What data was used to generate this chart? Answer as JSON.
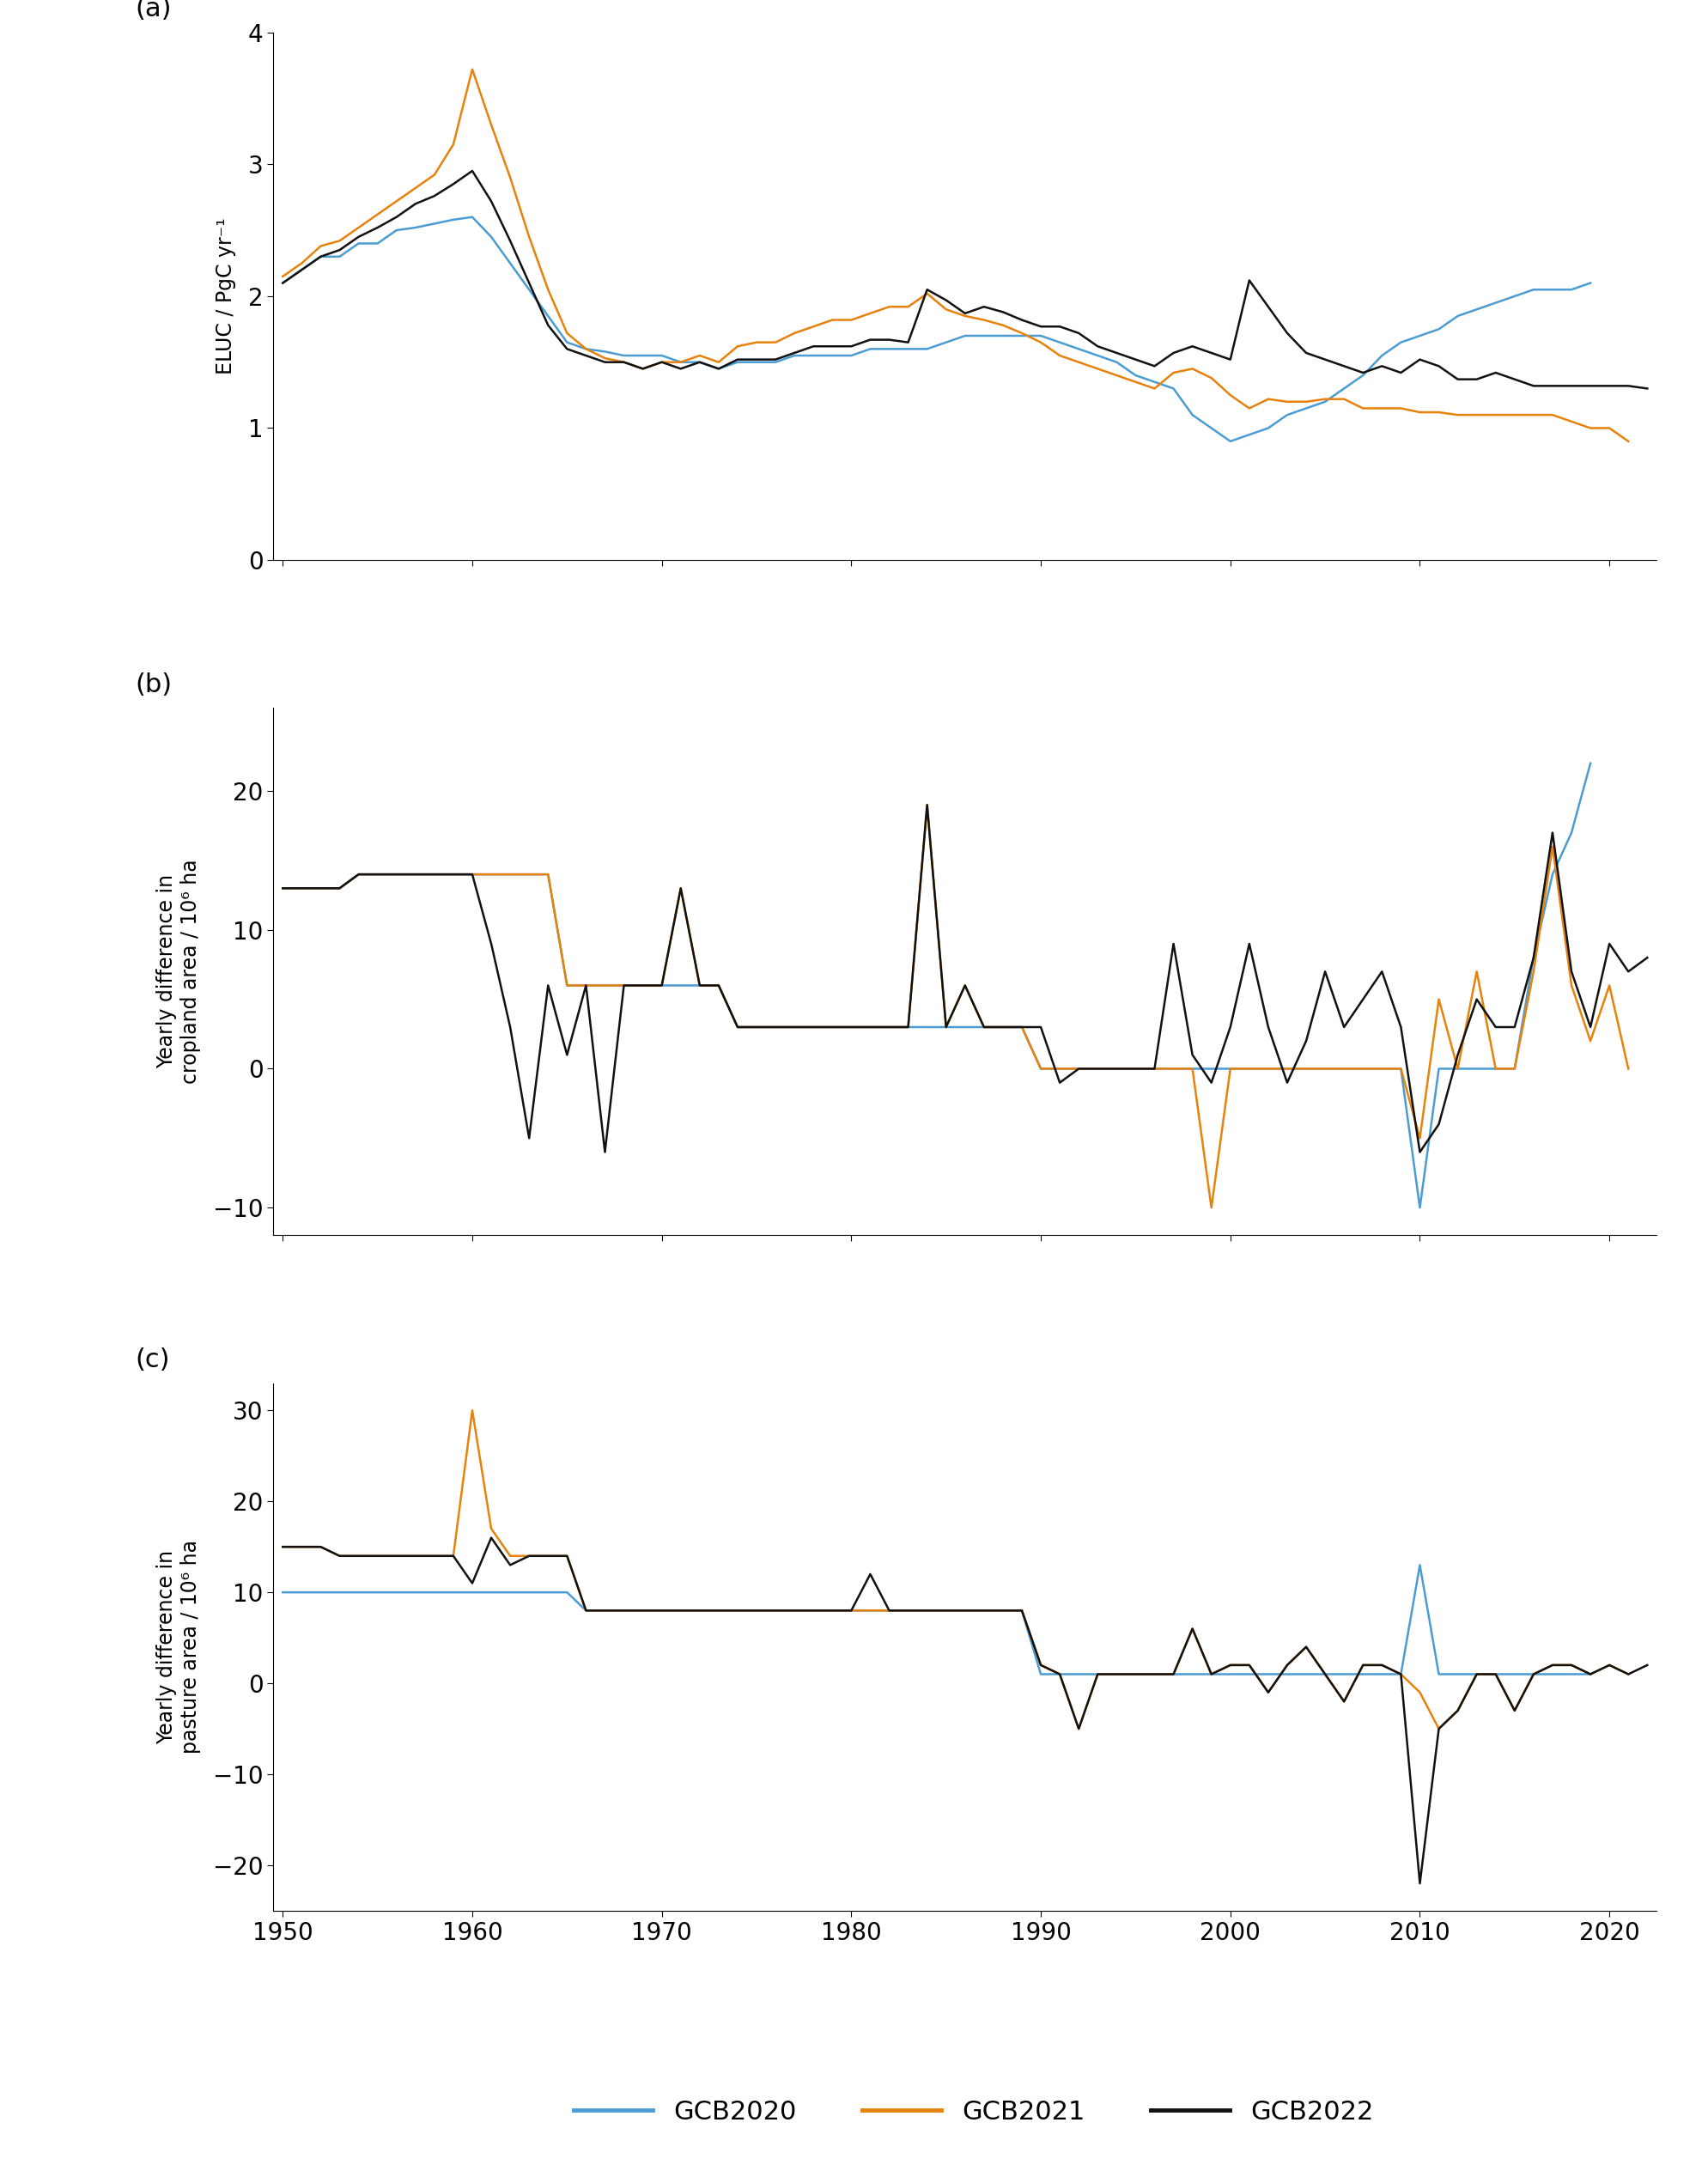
{
  "colors": {
    "GCB2020": "#4B9CD3",
    "GCB2021": "#E8820C",
    "GCB2022": "#111111"
  },
  "legend_labels": [
    "GCB2020",
    "GCB2021",
    "GCB2022"
  ],
  "panel_labels": [
    "(a)",
    "(b)",
    "(c)"
  ],
  "ylabels": [
    "ELUC / PgC yr⁻¹",
    "Yearly difference in\ncropland area / 10⁶ ha",
    "Yearly difference in\npasture area / 10⁶ ha"
  ],
  "panel_a": {
    "GCB2020": {
      "years": [
        1950,
        1951,
        1952,
        1953,
        1954,
        1955,
        1956,
        1957,
        1958,
        1959,
        1960,
        1961,
        1962,
        1963,
        1964,
        1965,
        1966,
        1967,
        1968,
        1969,
        1970,
        1971,
        1972,
        1973,
        1974,
        1975,
        1976,
        1977,
        1978,
        1979,
        1980,
        1981,
        1982,
        1983,
        1984,
        1985,
        1986,
        1987,
        1988,
        1989,
        1990,
        1991,
        1992,
        1993,
        1994,
        1995,
        1996,
        1997,
        1998,
        1999,
        2000,
        2001,
        2002,
        2003,
        2004,
        2005,
        2006,
        2007,
        2008,
        2009,
        2010,
        2011,
        2012,
        2013,
        2014,
        2015,
        2016,
        2017,
        2018,
        2019
      ],
      "values": [
        2.1,
        2.2,
        2.3,
        2.3,
        2.4,
        2.4,
        2.5,
        2.52,
        2.55,
        2.58,
        2.6,
        2.45,
        2.25,
        2.05,
        1.85,
        1.65,
        1.6,
        1.58,
        1.55,
        1.55,
        1.55,
        1.5,
        1.5,
        1.45,
        1.5,
        1.5,
        1.5,
        1.55,
        1.55,
        1.55,
        1.55,
        1.6,
        1.6,
        1.6,
        1.6,
        1.65,
        1.7,
        1.7,
        1.7,
        1.7,
        1.7,
        1.65,
        1.6,
        1.55,
        1.5,
        1.4,
        1.35,
        1.3,
        1.1,
        1.0,
        0.9,
        0.95,
        1.0,
        1.1,
        1.15,
        1.2,
        1.3,
        1.4,
        1.55,
        1.65,
        1.7,
        1.75,
        1.85,
        1.9,
        1.95,
        2.0,
        2.05,
        2.05,
        2.05,
        2.1
      ]
    },
    "GCB2021": {
      "years": [
        1950,
        1951,
        1952,
        1953,
        1954,
        1955,
        1956,
        1957,
        1958,
        1959,
        1960,
        1961,
        1962,
        1963,
        1964,
        1965,
        1966,
        1967,
        1968,
        1969,
        1970,
        1971,
        1972,
        1973,
        1974,
        1975,
        1976,
        1977,
        1978,
        1979,
        1980,
        1981,
        1982,
        1983,
        1984,
        1985,
        1986,
        1987,
        1988,
        1989,
        1990,
        1991,
        1992,
        1993,
        1994,
        1995,
        1996,
        1997,
        1998,
        1999,
        2000,
        2001,
        2002,
        2003,
        2004,
        2005,
        2006,
        2007,
        2008,
        2009,
        2010,
        2011,
        2012,
        2013,
        2014,
        2015,
        2016,
        2017,
        2018,
        2019,
        2020,
        2021
      ],
      "values": [
        2.15,
        2.25,
        2.38,
        2.42,
        2.52,
        2.62,
        2.72,
        2.82,
        2.92,
        3.15,
        3.72,
        3.3,
        2.9,
        2.45,
        2.05,
        1.72,
        1.6,
        1.53,
        1.5,
        1.45,
        1.5,
        1.5,
        1.55,
        1.5,
        1.62,
        1.65,
        1.65,
        1.72,
        1.77,
        1.82,
        1.82,
        1.87,
        1.92,
        1.92,
        2.02,
        1.9,
        1.85,
        1.82,
        1.78,
        1.72,
        1.65,
        1.55,
        1.5,
        1.45,
        1.4,
        1.35,
        1.3,
        1.42,
        1.45,
        1.38,
        1.25,
        1.15,
        1.22,
        1.2,
        1.2,
        1.22,
        1.22,
        1.15,
        1.15,
        1.15,
        1.12,
        1.12,
        1.1,
        1.1,
        1.1,
        1.1,
        1.1,
        1.1,
        1.05,
        1.0,
        1.0,
        0.9
      ]
    },
    "GCB2022": {
      "years": [
        1950,
        1951,
        1952,
        1953,
        1954,
        1955,
        1956,
        1957,
        1958,
        1959,
        1960,
        1961,
        1962,
        1963,
        1964,
        1965,
        1966,
        1967,
        1968,
        1969,
        1970,
        1971,
        1972,
        1973,
        1974,
        1975,
        1976,
        1977,
        1978,
        1979,
        1980,
        1981,
        1982,
        1983,
        1984,
        1985,
        1986,
        1987,
        1988,
        1989,
        1990,
        1991,
        1992,
        1993,
        1994,
        1995,
        1996,
        1997,
        1998,
        1999,
        2000,
        2001,
        2002,
        2003,
        2004,
        2005,
        2006,
        2007,
        2008,
        2009,
        2010,
        2011,
        2012,
        2013,
        2014,
        2015,
        2016,
        2017,
        2018,
        2019,
        2020,
        2021,
        2022
      ],
      "values": [
        2.1,
        2.2,
        2.3,
        2.35,
        2.45,
        2.52,
        2.6,
        2.7,
        2.76,
        2.85,
        2.95,
        2.72,
        2.42,
        2.1,
        1.78,
        1.6,
        1.55,
        1.5,
        1.5,
        1.45,
        1.5,
        1.45,
        1.5,
        1.45,
        1.52,
        1.52,
        1.52,
        1.57,
        1.62,
        1.62,
        1.62,
        1.67,
        1.67,
        1.65,
        2.05,
        1.97,
        1.87,
        1.92,
        1.88,
        1.82,
        1.77,
        1.77,
        1.72,
        1.62,
        1.57,
        1.52,
        1.47,
        1.57,
        1.62,
        1.57,
        1.52,
        2.12,
        1.92,
        1.72,
        1.57,
        1.52,
        1.47,
        1.42,
        1.47,
        1.42,
        1.52,
        1.47,
        1.37,
        1.37,
        1.42,
        1.37,
        1.32,
        1.32,
        1.32,
        1.32,
        1.32,
        1.32,
        1.3
      ]
    },
    "ylim": [
      0,
      4
    ],
    "yticks": [
      0,
      1,
      2,
      3,
      4
    ]
  },
  "panel_b": {
    "GCB2020": {
      "years": [
        1950,
        1951,
        1952,
        1953,
        1954,
        1955,
        1956,
        1957,
        1958,
        1959,
        1960,
        1961,
        1962,
        1963,
        1964,
        1965,
        1966,
        1967,
        1968,
        1969,
        1970,
        1971,
        1972,
        1973,
        1974,
        1975,
        1976,
        1977,
        1978,
        1979,
        1980,
        1981,
        1982,
        1983,
        1984,
        1985,
        1986,
        1987,
        1988,
        1989,
        1990,
        1991,
        1992,
        1993,
        1994,
        1995,
        1996,
        1997,
        1998,
        1999,
        2000,
        2001,
        2002,
        2003,
        2004,
        2005,
        2006,
        2007,
        2008,
        2009,
        2010,
        2011,
        2012,
        2013,
        2014,
        2015,
        2016,
        2017,
        2018,
        2019
      ],
      "values": [
        13,
        13,
        13,
        13,
        14,
        14,
        14,
        14,
        14,
        14,
        14,
        14,
        14,
        14,
        14,
        6,
        6,
        6,
        6,
        6,
        6,
        6,
        6,
        6,
        3,
        3,
        3,
        3,
        3,
        3,
        3,
        3,
        3,
        3,
        3,
        3,
        3,
        3,
        3,
        3,
        0,
        0,
        0,
        0,
        0,
        0,
        0,
        0,
        0,
        0,
        0,
        0,
        0,
        0,
        0,
        0,
        0,
        0,
        0,
        0,
        -10,
        0,
        0,
        0,
        0,
        0,
        8,
        14,
        17,
        22
      ]
    },
    "GCB2021": {
      "years": [
        1950,
        1951,
        1952,
        1953,
        1954,
        1955,
        1956,
        1957,
        1958,
        1959,
        1960,
        1961,
        1962,
        1963,
        1964,
        1965,
        1966,
        1967,
        1968,
        1969,
        1970,
        1971,
        1972,
        1973,
        1974,
        1975,
        1976,
        1977,
        1978,
        1979,
        1980,
        1981,
        1982,
        1983,
        1984,
        1985,
        1986,
        1987,
        1988,
        1989,
        1990,
        1991,
        1992,
        1993,
        1994,
        1995,
        1996,
        1997,
        1998,
        1999,
        2000,
        2001,
        2002,
        2003,
        2004,
        2005,
        2006,
        2007,
        2008,
        2009,
        2010,
        2011,
        2012,
        2013,
        2014,
        2015,
        2016,
        2017,
        2018,
        2019,
        2020,
        2021
      ],
      "values": [
        13,
        13,
        13,
        13,
        14,
        14,
        14,
        14,
        14,
        14,
        14,
        14,
        14,
        14,
        14,
        6,
        6,
        6,
        6,
        6,
        6,
        13,
        6,
        6,
        3,
        3,
        3,
        3,
        3,
        3,
        3,
        3,
        3,
        3,
        19,
        3,
        6,
        3,
        3,
        3,
        0,
        0,
        0,
        0,
        0,
        0,
        0,
        0,
        0,
        -10,
        0,
        0,
        0,
        0,
        0,
        0,
        0,
        0,
        0,
        0,
        -5,
        5,
        0,
        7,
        0,
        0,
        7,
        16,
        6,
        2,
        6,
        0
      ]
    },
    "GCB2022": {
      "years": [
        1950,
        1951,
        1952,
        1953,
        1954,
        1955,
        1956,
        1957,
        1958,
        1959,
        1960,
        1961,
        1962,
        1963,
        1964,
        1965,
        1966,
        1967,
        1968,
        1969,
        1970,
        1971,
        1972,
        1973,
        1974,
        1975,
        1976,
        1977,
        1978,
        1979,
        1980,
        1981,
        1982,
        1983,
        1984,
        1985,
        1986,
        1987,
        1988,
        1989,
        1990,
        1991,
        1992,
        1993,
        1994,
        1995,
        1996,
        1997,
        1998,
        1999,
        2000,
        2001,
        2002,
        2003,
        2004,
        2005,
        2006,
        2007,
        2008,
        2009,
        2010,
        2011,
        2012,
        2013,
        2014,
        2015,
        2016,
        2017,
        2018,
        2019,
        2020,
        2021,
        2022
      ],
      "values": [
        13,
        13,
        13,
        13,
        14,
        14,
        14,
        14,
        14,
        14,
        14,
        9,
        3,
        -5,
        6,
        1,
        6,
        -6,
        6,
        6,
        6,
        13,
        6,
        6,
        3,
        3,
        3,
        3,
        3,
        3,
        3,
        3,
        3,
        3,
        19,
        3,
        6,
        3,
        3,
        3,
        3,
        -1,
        0,
        0,
        0,
        0,
        0,
        9,
        1,
        -1,
        3,
        9,
        3,
        -1,
        2,
        7,
        3,
        5,
        7,
        3,
        -6,
        -4,
        1,
        5,
        3,
        3,
        8,
        17,
        7,
        3,
        9,
        7,
        8
      ]
    },
    "ylim": [
      -12,
      26
    ],
    "yticks": [
      -10,
      0,
      10,
      20
    ]
  },
  "panel_c": {
    "GCB2020": {
      "years": [
        1950,
        1951,
        1952,
        1953,
        1954,
        1955,
        1956,
        1957,
        1958,
        1959,
        1960,
        1961,
        1962,
        1963,
        1964,
        1965,
        1966,
        1967,
        1968,
        1969,
        1970,
        1971,
        1972,
        1973,
        1974,
        1975,
        1976,
        1977,
        1978,
        1979,
        1980,
        1981,
        1982,
        1983,
        1984,
        1985,
        1986,
        1987,
        1988,
        1989,
        1990,
        1991,
        1992,
        1993,
        1994,
        1995,
        1996,
        1997,
        1998,
        1999,
        2000,
        2001,
        2002,
        2003,
        2004,
        2005,
        2006,
        2007,
        2008,
        2009,
        2010,
        2011,
        2012,
        2013,
        2014,
        2015,
        2016,
        2017,
        2018,
        2019
      ],
      "values": [
        10,
        10,
        10,
        10,
        10,
        10,
        10,
        10,
        10,
        10,
        10,
        10,
        10,
        10,
        10,
        10,
        8,
        8,
        8,
        8,
        8,
        8,
        8,
        8,
        8,
        8,
        8,
        8,
        8,
        8,
        8,
        8,
        8,
        8,
        8,
        8,
        8,
        8,
        8,
        8,
        1,
        1,
        1,
        1,
        1,
        1,
        1,
        1,
        1,
        1,
        1,
        1,
        1,
        1,
        1,
        1,
        1,
        1,
        1,
        1,
        13,
        1,
        1,
        1,
        1,
        1,
        1,
        1,
        1,
        1
      ]
    },
    "GCB2021": {
      "years": [
        1950,
        1951,
        1952,
        1953,
        1954,
        1955,
        1956,
        1957,
        1958,
        1959,
        1960,
        1961,
        1962,
        1963,
        1964,
        1965,
        1966,
        1967,
        1968,
        1969,
        1970,
        1971,
        1972,
        1973,
        1974,
        1975,
        1976,
        1977,
        1978,
        1979,
        1980,
        1981,
        1982,
        1983,
        1984,
        1985,
        1986,
        1987,
        1988,
        1989,
        1990,
        1991,
        1992,
        1993,
        1994,
        1995,
        1996,
        1997,
        1998,
        1999,
        2000,
        2001,
        2002,
        2003,
        2004,
        2005,
        2006,
        2007,
        2008,
        2009,
        2010,
        2011,
        2012,
        2013,
        2014,
        2015,
        2016,
        2017,
        2018,
        2019,
        2020,
        2021
      ],
      "values": [
        15,
        15,
        15,
        14,
        14,
        14,
        14,
        14,
        14,
        14,
        30,
        17,
        14,
        14,
        14,
        14,
        8,
        8,
        8,
        8,
        8,
        8,
        8,
        8,
        8,
        8,
        8,
        8,
        8,
        8,
        8,
        8,
        8,
        8,
        8,
        8,
        8,
        8,
        8,
        8,
        2,
        1,
        -5,
        1,
        1,
        1,
        1,
        1,
        6,
        1,
        2,
        2,
        -1,
        2,
        4,
        1,
        -2,
        2,
        2,
        1,
        -1,
        -5,
        -3,
        1,
        1,
        -3,
        1,
        2,
        2,
        1,
        2,
        1
      ]
    },
    "GCB2022": {
      "years": [
        1950,
        1951,
        1952,
        1953,
        1954,
        1955,
        1956,
        1957,
        1958,
        1959,
        1960,
        1961,
        1962,
        1963,
        1964,
        1965,
        1966,
        1967,
        1968,
        1969,
        1970,
        1971,
        1972,
        1973,
        1974,
        1975,
        1976,
        1977,
        1978,
        1979,
        1980,
        1981,
        1982,
        1983,
        1984,
        1985,
        1986,
        1987,
        1988,
        1989,
        1990,
        1991,
        1992,
        1993,
        1994,
        1995,
        1996,
        1997,
        1998,
        1999,
        2000,
        2001,
        2002,
        2003,
        2004,
        2005,
        2006,
        2007,
        2008,
        2009,
        2010,
        2011,
        2012,
        2013,
        2014,
        2015,
        2016,
        2017,
        2018,
        2019,
        2020,
        2021,
        2022
      ],
      "values": [
        15,
        15,
        15,
        14,
        14,
        14,
        14,
        14,
        14,
        14,
        11,
        16,
        13,
        14,
        14,
        14,
        8,
        8,
        8,
        8,
        8,
        8,
        8,
        8,
        8,
        8,
        8,
        8,
        8,
        8,
        8,
        12,
        8,
        8,
        8,
        8,
        8,
        8,
        8,
        8,
        2,
        1,
        -5,
        1,
        1,
        1,
        1,
        1,
        6,
        1,
        2,
        2,
        -1,
        2,
        4,
        1,
        -2,
        2,
        2,
        1,
        -22,
        -5,
        -3,
        1,
        1,
        -3,
        1,
        2,
        2,
        1,
        2,
        1,
        2
      ]
    },
    "ylim": [
      -25,
      33
    ],
    "yticks": [
      -20,
      -10,
      0,
      10,
      20,
      30
    ]
  },
  "xlim": [
    1949.5,
    2022.5
  ],
  "xticks": [
    1950,
    1960,
    1970,
    1980,
    1990,
    2000,
    2010,
    2020
  ],
  "line_width": 1.8,
  "background_color": "#ffffff"
}
